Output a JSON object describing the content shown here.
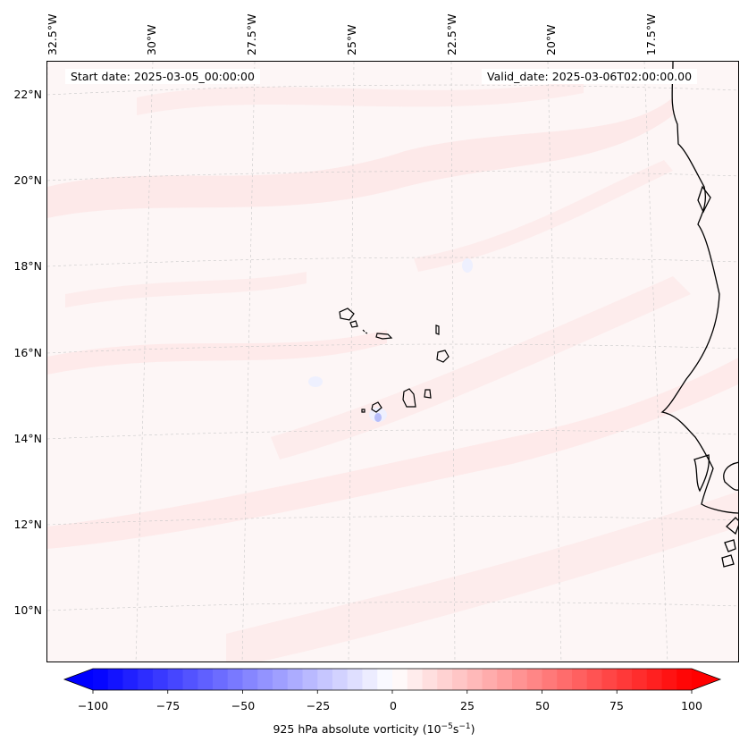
{
  "map": {
    "start_date": "Start date: 2025-03-05_00:00:00",
    "valid_date": "Valid_date: 2025-03-06T02:00:00.00",
    "lon_labels": [
      "32.5°W",
      "30°W",
      "27.5°W",
      "25°W",
      "22.5°W",
      "20°W",
      "17.5°W"
    ],
    "lat_labels": [
      "22°N",
      "20°N",
      "18°N",
      "16°N",
      "14°N",
      "12°N",
      "10°N"
    ],
    "coastline_color": "#000000",
    "gridline_color": "#c8c8c8",
    "background_color": "#fdf6f6"
  },
  "colorbar": {
    "ticks": [
      "−100",
      "−75",
      "−50",
      "−25",
      "0",
      "25",
      "50",
      "75",
      "100"
    ],
    "label_prefix": "925 hPa absolute vorticity (10",
    "label_exp1": "−5",
    "label_mid": "s",
    "label_exp2": "−1",
    "label_suffix": ")",
    "min": -100,
    "max": 100,
    "levels": 40,
    "extend": "both",
    "colormap": "bwr",
    "low_color": "#0000ff",
    "mid_color": "#ffffff",
    "high_color": "#ff0000"
  }
}
